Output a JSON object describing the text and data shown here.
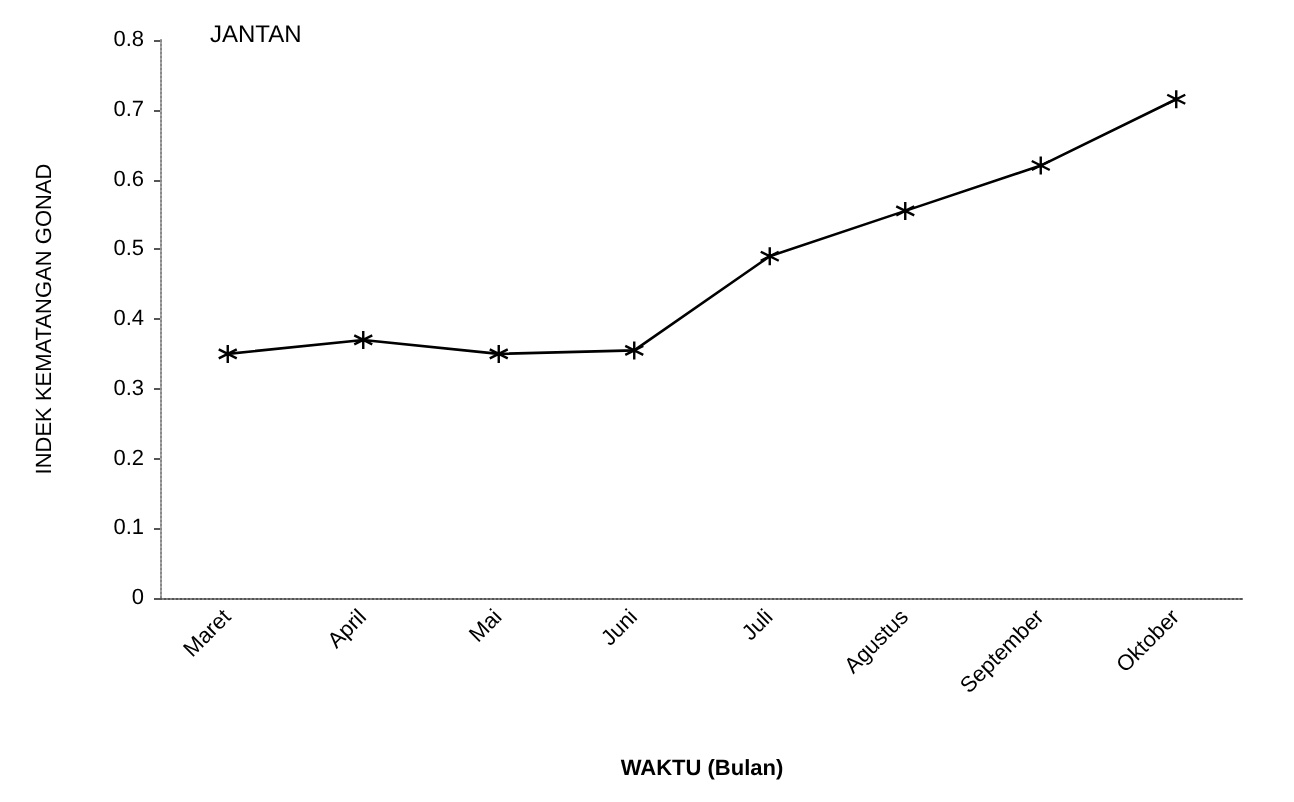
{
  "chart_data": {
    "type": "line",
    "title": "JANTAN",
    "xlabel": "WAKTU (Bulan)",
    "ylabel": "INDEK KEMATANGAN GONAD",
    "categories": [
      "Maret",
      "April",
      "Mai",
      "Juni",
      "Juli",
      "Agustus",
      "September",
      "Oktober"
    ],
    "series": [
      {
        "color": "#000000",
        "values": [
          0.35,
          0.37,
          0.35,
          0.355,
          0.49,
          0.555,
          0.62,
          0.715
        ]
      }
    ],
    "ylim": [
      0,
      0.8
    ],
    "yticks": [
      0,
      0.1,
      0.2,
      0.3,
      0.4,
      0.5,
      0.6,
      0.7,
      0.8
    ],
    "grid": false,
    "marker": "cross",
    "line_style": "solid"
  }
}
